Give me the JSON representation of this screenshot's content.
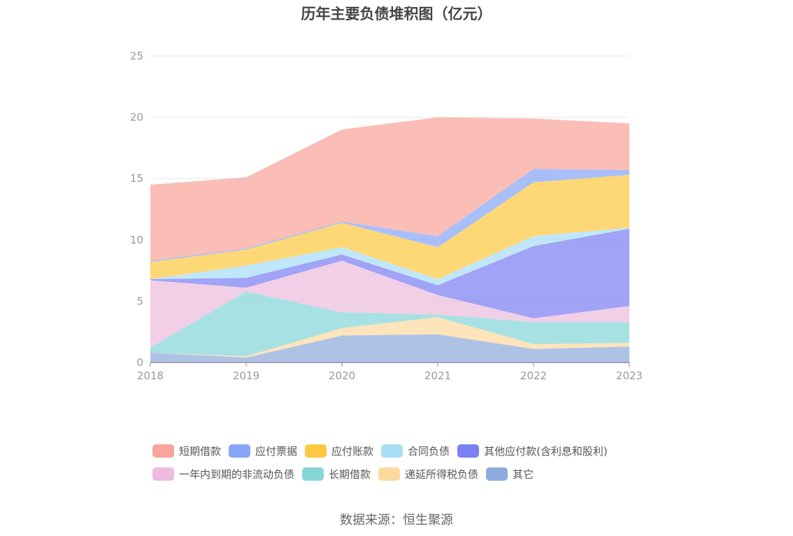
{
  "title": "历年主要负债堆积图（亿元）",
  "source": "数据来源：恒生聚源",
  "chart_data": {
    "type": "area",
    "stacked": true,
    "x": [
      "2018",
      "2019",
      "2020",
      "2021",
      "2022",
      "2023"
    ],
    "ylim": [
      0,
      25
    ],
    "yticks": [
      0,
      5,
      10,
      15,
      20,
      25
    ],
    "grid": true,
    "legend_position": "bottom",
    "series": [
      {
        "name": "其它",
        "color": "#8faadc",
        "values": [
          0.8,
          0.4,
          2.2,
          2.3,
          1.1,
          1.3
        ]
      },
      {
        "name": "递延所得税负债",
        "color": "#fdd9a0",
        "values": [
          0.0,
          0.1,
          0.6,
          1.4,
          0.4,
          0.3
        ]
      },
      {
        "name": "长期借款",
        "color": "#86d6d8",
        "values": [
          0.4,
          5.3,
          1.3,
          0.2,
          1.8,
          1.7
        ]
      },
      {
        "name": "一年内到期的非流动负债",
        "color": "#ebbcdd",
        "values": [
          5.5,
          0.3,
          4.2,
          1.6,
          0.3,
          1.3
        ]
      },
      {
        "name": "其他应付款(含利息和股利)",
        "color": "#7b7ff2",
        "values": [
          0.1,
          0.8,
          0.5,
          0.8,
          5.9,
          6.3
        ]
      },
      {
        "name": "合同负债",
        "color": "#a8def6",
        "values": [
          0.0,
          1.0,
          0.6,
          0.5,
          0.8,
          0.1
        ]
      },
      {
        "name": "应付账款",
        "color": "#fdc942",
        "values": [
          1.4,
          1.3,
          2.0,
          2.6,
          4.4,
          4.3
        ]
      },
      {
        "name": "应付票据",
        "color": "#88a6f8",
        "values": [
          0.1,
          0.1,
          0.1,
          0.9,
          1.1,
          0.4
        ]
      },
      {
        "name": "短期借款",
        "color": "#f9a59b",
        "values": [
          6.2,
          5.8,
          7.5,
          9.7,
          4.1,
          3.8
        ]
      }
    ]
  },
  "legend_rows": [
    [
      {
        "label": "短期借款",
        "color": "#f9a59b"
      },
      {
        "label": "应付票据",
        "color": "#88a6f8"
      },
      {
        "label": "应付账款",
        "color": "#fdc942"
      },
      {
        "label": "合同负债",
        "color": "#a8def6"
      },
      {
        "label": "其他应付款(含利息和股利)",
        "color": "#7b7ff2"
      }
    ],
    [
      {
        "label": "一年内到期的非流动负债",
        "color": "#ebbcdd"
      },
      {
        "label": "长期借款",
        "color": "#86d6d8"
      },
      {
        "label": "递延所得税负债",
        "color": "#fdd9a0"
      },
      {
        "label": "其它",
        "color": "#8faadc"
      }
    ]
  ]
}
